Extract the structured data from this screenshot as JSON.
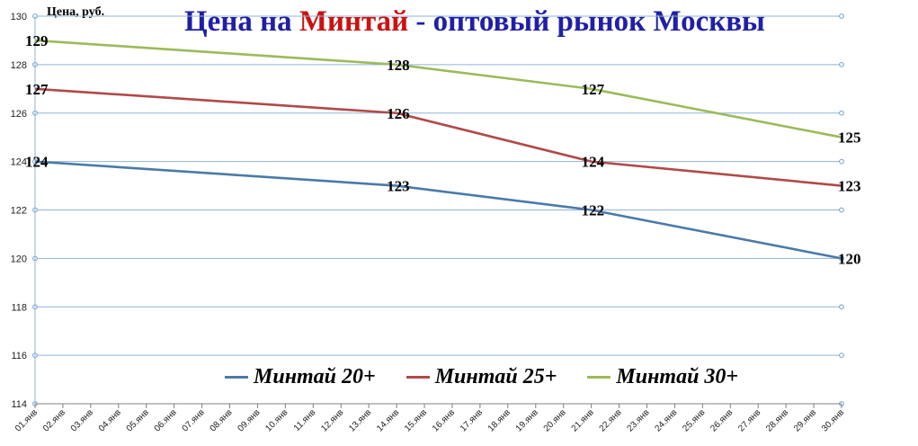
{
  "chart_data": {
    "type": "line",
    "title_parts": [
      "Цена на ",
      "Минтай",
      " - оптовый рынок Москвы"
    ],
    "ylabel": "Цена, руб.",
    "xlabel": "",
    "ylim": [
      114,
      130
    ],
    "yticks": [
      "114",
      "116",
      "118",
      "120",
      "122",
      "124",
      "126",
      "128",
      "130"
    ],
    "categories": [
      "01.янв",
      "02.янв",
      "03.янв",
      "04.янв",
      "05.янв",
      "06.янв",
      "07.янв",
      "08.янв",
      "09.янв",
      "10.янв",
      "11.янв",
      "12.янв",
      "13.янв",
      "14.янв",
      "15.янв",
      "16.янв",
      "17.янв",
      "18.янв",
      "19.янв",
      "20.янв",
      "21.янв",
      "22.янв",
      "23.янв",
      "24.янв",
      "25.янв",
      "26.янв",
      "27.янв",
      "28.янв",
      "29.янв",
      "30.янв"
    ],
    "series": [
      {
        "name": "Минтай 20+",
        "color": "#4a7aa8",
        "points": [
          {
            "x": "01.янв",
            "y": 124
          },
          {
            "x": "14.янв",
            "y": 123
          },
          {
            "x": "21.янв",
            "y": 122
          },
          {
            "x": "30.янв",
            "y": 120
          }
        ]
      },
      {
        "name": "Минтай 25+",
        "color": "#b04a48",
        "points": [
          {
            "x": "01.янв",
            "y": 127
          },
          {
            "x": "14.янв",
            "y": 126
          },
          {
            "x": "21.янв",
            "y": 124
          },
          {
            "x": "30.янв",
            "y": 123
          }
        ]
      },
      {
        "name": "Минтай 30+",
        "color": "#9bbb59",
        "points": [
          {
            "x": "01.янв",
            "y": 129
          },
          {
            "x": "14.янв",
            "y": 128
          },
          {
            "x": "21.янв",
            "y": 127
          },
          {
            "x": "30.янв",
            "y": 125
          }
        ]
      }
    ],
    "grid": true,
    "legend_position": "bottom"
  }
}
